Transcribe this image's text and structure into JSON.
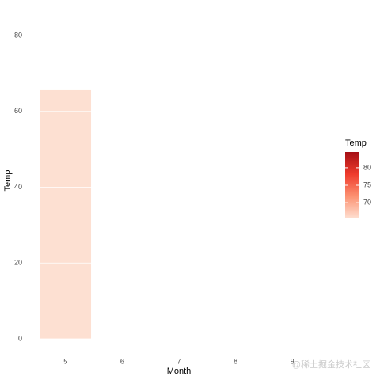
{
  "chart_data": {
    "type": "bar",
    "x_label": "Month",
    "y_label": "Temp",
    "categories": [
      "5",
      "6",
      "7",
      "8",
      "9"
    ],
    "values": [
      65.6,
      null,
      null,
      null,
      null
    ],
    "color": "#fde0d2",
    "ylim": [
      0,
      80
    ],
    "yticks": [
      0,
      20,
      40,
      60,
      80
    ],
    "legend": {
      "title": "Temp",
      "lim": [
        65.5,
        84.5
      ],
      "ticks": [
        70,
        75,
        80
      ],
      "colors": [
        "#fee0d2",
        "#fc9272",
        "#ef3b2c",
        "#a50f15"
      ]
    },
    "watermark": "@稀土掘金技术社区"
  }
}
